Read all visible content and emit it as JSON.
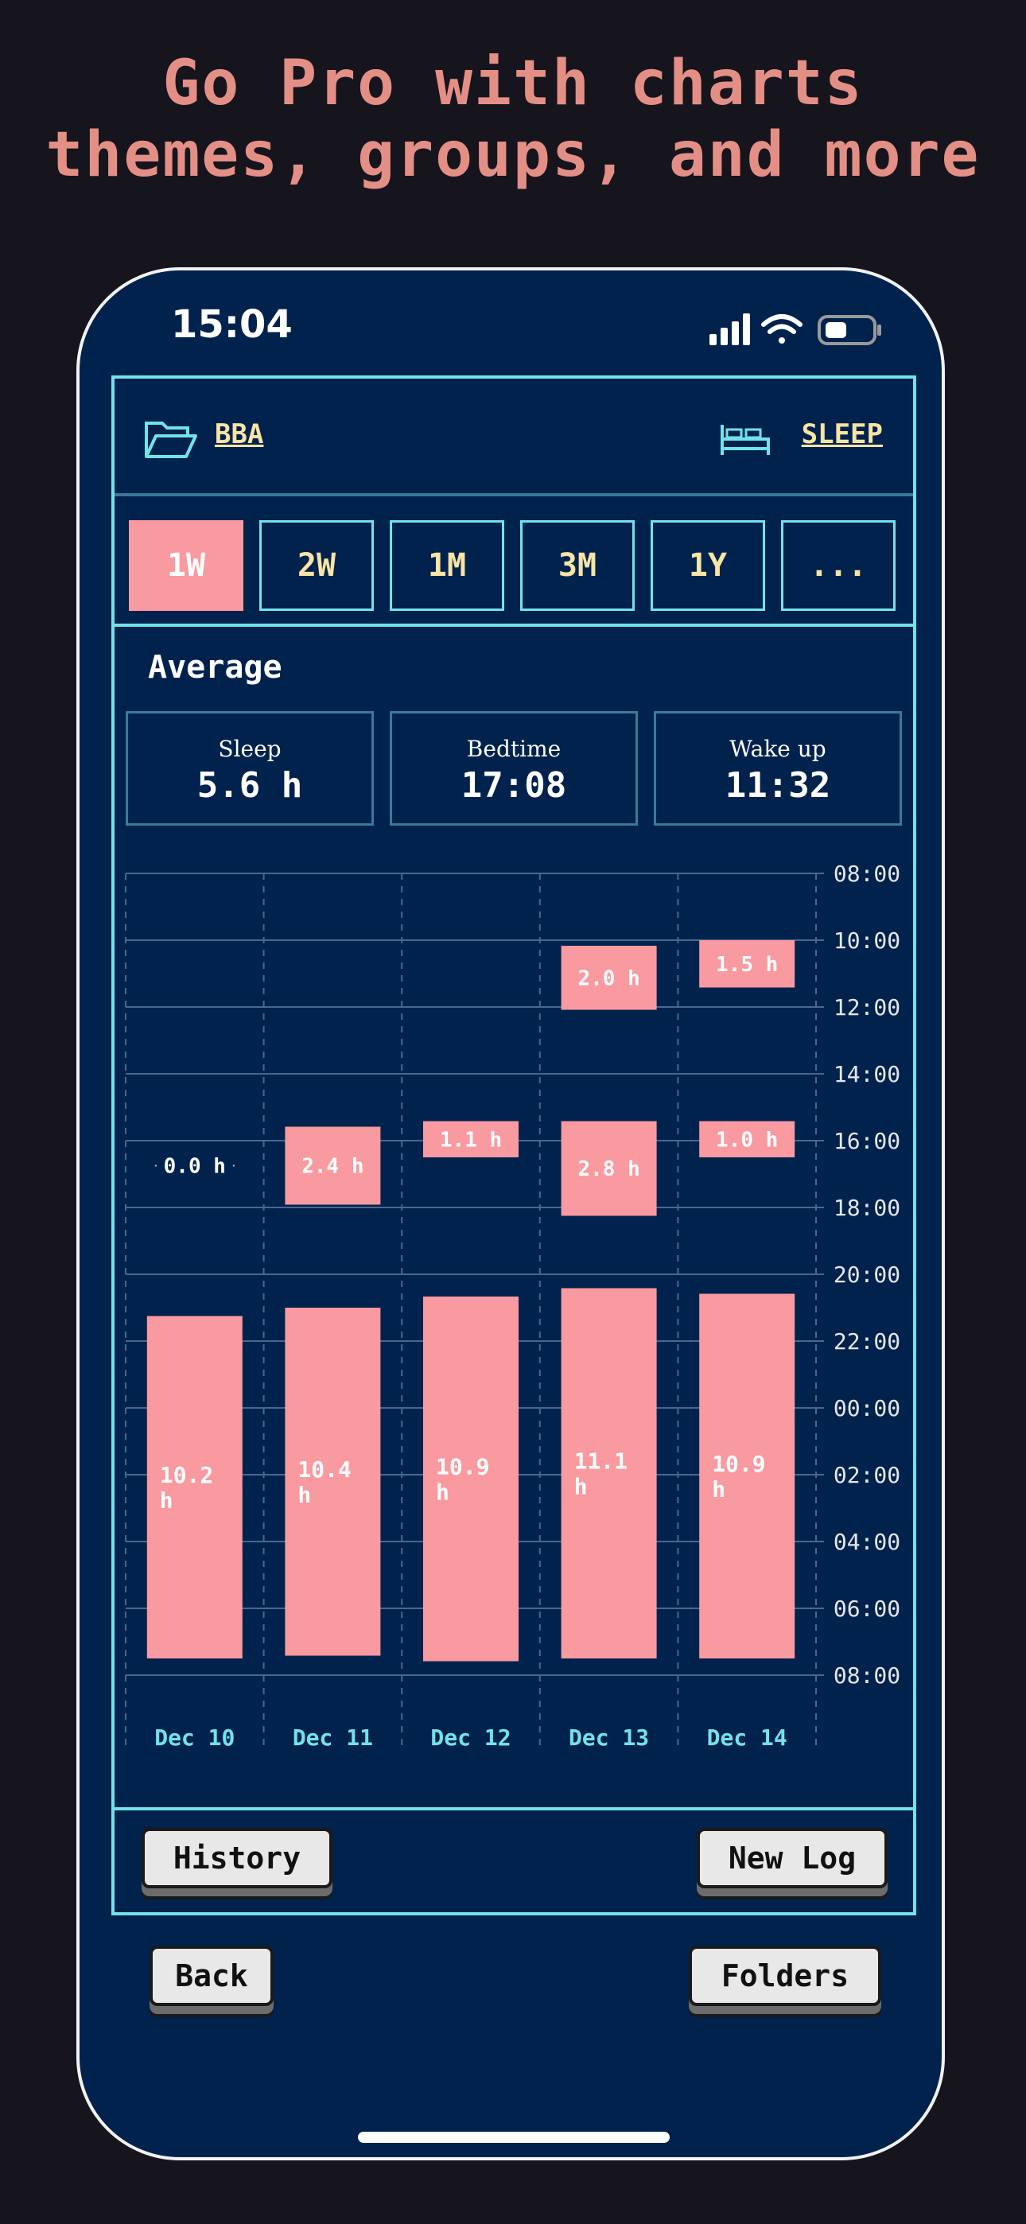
{
  "headline": {
    "line1": "Go Pro with charts",
    "line2": "themes, groups, and more"
  },
  "status_bar": {
    "time": "15:04"
  },
  "topbar": {
    "folder_icon": "folder-open-icon",
    "folder_label": "BBA",
    "type_icon": "bed-icon",
    "type_label": "SLEEP"
  },
  "ranges": {
    "selected": "1W",
    "options": [
      "1W",
      "2W",
      "1M",
      "3M",
      "1Y",
      "..."
    ]
  },
  "average": {
    "title": "Average",
    "stats": [
      {
        "label": "Sleep",
        "value": "5.6 h"
      },
      {
        "label": "Bedtime",
        "value": "17:08"
      },
      {
        "label": "Wake up",
        "value": "11:32"
      }
    ]
  },
  "chart_data": {
    "type": "bar",
    "title": "",
    "xlabel": "",
    "ylabel": "",
    "orientation": "vertical, floating (time-of-day span)",
    "categories": [
      "Dec 10",
      "Dec 11",
      "Dec 12",
      "Dec 13",
      "Dec 14"
    ],
    "y_ticks": [
      "08:00",
      "10:00",
      "12:00",
      "14:00",
      "16:00",
      "18:00",
      "20:00",
      "22:00",
      "00:00",
      "02:00",
      "04:00",
      "06:00",
      "08:00"
    ],
    "y_axis": "time of day, from 08:00 (top) to 08:00 next day (bottom), 2-hour gridlines",
    "grid": true,
    "bar_color": "#f89aa0",
    "sessions": [
      {
        "category": "Dec 10",
        "start": "16:45",
        "end": "16:45",
        "label": "0.0 h"
      },
      {
        "category": "Dec 10",
        "start": "21:15",
        "end": "07:30",
        "label": "10.2 h"
      },
      {
        "category": "Dec 11",
        "start": "15:35",
        "end": "17:55",
        "label": "2.4 h"
      },
      {
        "category": "Dec 11",
        "start": "21:00",
        "end": "07:25",
        "label": "10.4 h"
      },
      {
        "category": "Dec 12",
        "start": "15:25",
        "end": "16:30",
        "label": "1.1 h"
      },
      {
        "category": "Dec 12",
        "start": "20:40",
        "end": "07:35",
        "label": "10.9 h"
      },
      {
        "category": "Dec 13",
        "start": "10:10",
        "end": "12:05",
        "label": "2.0 h"
      },
      {
        "category": "Dec 13",
        "start": "15:25",
        "end": "18:15",
        "label": "2.8 h"
      },
      {
        "category": "Dec 13",
        "start": "20:25",
        "end": "07:30",
        "label": "11.1 h"
      },
      {
        "category": "Dec 14",
        "start": "10:00",
        "end": "11:25",
        "label": "1.5 h"
      },
      {
        "category": "Dec 14",
        "start": "15:25",
        "end": "16:30",
        "label": "1.0 h"
      },
      {
        "category": "Dec 14",
        "start": "20:35",
        "end": "07:30",
        "label": "10.9 h"
      }
    ]
  },
  "buttons": {
    "history": "History",
    "new_log": "New Log",
    "back": "Back",
    "folders": "Folders"
  },
  "colors": {
    "background": "#16141d",
    "headline": "#e48f86",
    "app_background": "#00224d",
    "accent": "#72e3e8",
    "link": "#f8e4a4",
    "bar": "#f89aa0"
  }
}
